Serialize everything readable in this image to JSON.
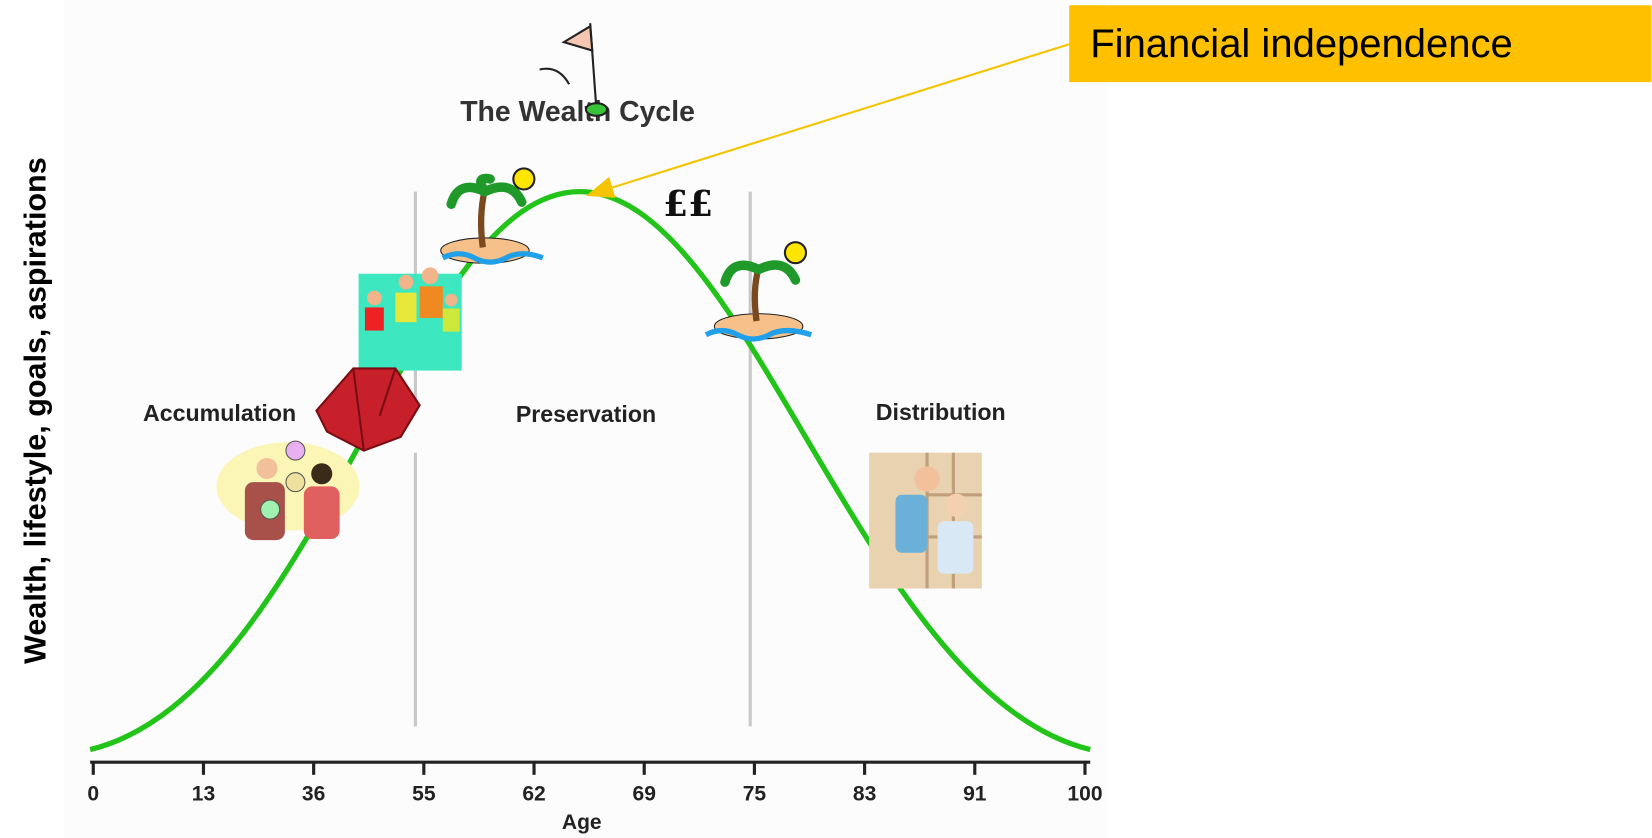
{
  "title": "The Wealth Cycle",
  "y_axis_label": "Wealth, lifestyle, goals, aspirations",
  "x_axis_label": "Age",
  "x_ticks": [
    "0",
    "13",
    "36",
    "55",
    "62",
    "69",
    "75",
    "83",
    "91",
    "100"
  ],
  "phases": [
    "Accumulation",
    "Preservation",
    "Distribution"
  ],
  "currency_mark": "££",
  "callout": "Financial independence"
}
